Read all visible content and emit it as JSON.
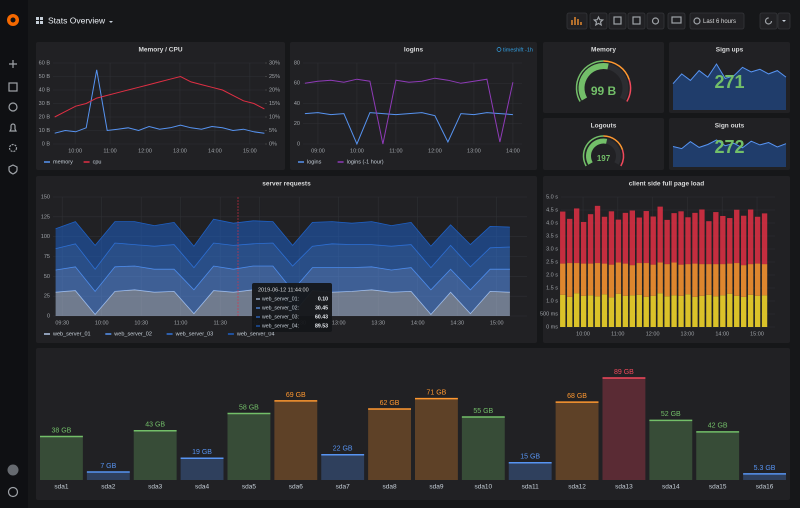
{
  "header": {
    "title": "Stats Overview",
    "time_range": "Last 6 hours"
  },
  "chart_data": [
    {
      "type": "line",
      "title": "Memory / CPU",
      "x": [
        "09:25",
        "09:43",
        "10:01",
        "10:19",
        "10:37",
        "10:55",
        "11:13",
        "11:31",
        "11:49",
        "12:07",
        "12:25",
        "12:43",
        "13:01",
        "13:19",
        "13:37",
        "13:55",
        "14:13",
        "14:31",
        "14:49",
        "15:07",
        "15:25"
      ],
      "series": [
        {
          "name": "memory",
          "color": "#5794f2",
          "values": [
            8,
            10,
            9,
            12,
            55,
            10,
            11,
            12,
            10,
            13,
            11,
            12,
            14,
            12,
            11,
            13,
            12,
            10,
            11,
            9,
            8
          ]
        },
        {
          "name": "cpu",
          "color": "#e02f44",
          "axis": "y2",
          "values": [
            10,
            12,
            14,
            15,
            17,
            18,
            19,
            20,
            21,
            22,
            23,
            24,
            25,
            23,
            22,
            21,
            20,
            18,
            16,
            15,
            13
          ]
        }
      ],
      "xlim": [
        "09:22",
        "15:26"
      ],
      "xticks": [
        "10:00",
        "11:00",
        "12:00",
        "13:00",
        "14:00",
        "15:00"
      ],
      "ylim": [
        0,
        60
      ],
      "yticks": [
        {
          "value": 0,
          "label": "0 B"
        },
        {
          "value": 10,
          "label": "10 B"
        },
        {
          "value": 20,
          "label": "20 B"
        },
        {
          "value": 30,
          "label": "30 B"
        },
        {
          "value": 40,
          "label": "40 B"
        },
        {
          "value": 50,
          "label": "50 B"
        },
        {
          "value": 60,
          "label": "60 B"
        }
      ],
      "y2lim": [
        0,
        30
      ],
      "y2ticks": [
        {
          "value": 0,
          "label": "0%"
        },
        {
          "value": 5,
          "label": "5%"
        },
        {
          "value": 10,
          "label": "10%"
        },
        {
          "value": 15,
          "label": "15%"
        },
        {
          "value": 20,
          "label": "20%"
        },
        {
          "value": 25,
          "label": "25%"
        },
        {
          "value": 30,
          "label": "30%"
        }
      ]
    },
    {
      "type": "line",
      "title": "logins",
      "annotation": "timeshift -1h",
      "x": [
        "08:40",
        "09:00",
        "09:20",
        "09:40",
        "10:00",
        "10:20",
        "10:40",
        "11:00",
        "11:20",
        "11:40",
        "12:00",
        "12:20",
        "12:40",
        "13:00",
        "13:20",
        "13:40",
        "14:00"
      ],
      "series": [
        {
          "name": "logins",
          "color": "#5794f2",
          "values": [
            30,
            31,
            29,
            30,
            0,
            31,
            30,
            29,
            30,
            31,
            28,
            2,
            30,
            29,
            31,
            30,
            29
          ]
        },
        {
          "name": "logins (-1 hour)",
          "color": "#8f3bb8",
          "values": [
            60,
            62,
            63,
            61,
            64,
            62,
            0,
            63,
            61,
            62,
            65,
            63,
            60,
            62,
            64,
            2,
            61
          ]
        }
      ],
      "xlim": [
        "08:37",
        "14:14"
      ],
      "xticks": [
        "09:00",
        "10:00",
        "11:00",
        "12:00",
        "13:00",
        "14:00"
      ],
      "ylim": [
        0,
        80
      ],
      "yticks": [
        0,
        20,
        40,
        60,
        80
      ]
    },
    {
      "type": "gauge",
      "title": "Memory",
      "value": 99,
      "value_label": "99 B"
    },
    {
      "type": "stat",
      "title": "Sign ups",
      "value": 271,
      "sparkline": [
        40,
        55,
        45,
        60,
        50,
        70,
        48,
        52,
        65,
        58,
        62,
        55,
        60,
        50
      ]
    },
    {
      "type": "gauge",
      "title": "Logouts",
      "value": 197
    },
    {
      "type": "stat",
      "title": "Sign outs",
      "value": 272,
      "sparkline": [
        50,
        45,
        62,
        48,
        55,
        66,
        52,
        58,
        47,
        63,
        54,
        60,
        49,
        57
      ]
    },
    {
      "type": "area",
      "title": "server requests",
      "x": [
        "09:25",
        "09:40",
        "09:55",
        "10:10",
        "10:25",
        "10:40",
        "10:55",
        "11:10",
        "11:25",
        "11:40",
        "11:55",
        "12:10",
        "12:25",
        "12:40",
        "12:55",
        "13:10",
        "13:25",
        "13:40",
        "13:55",
        "14:10",
        "14:25",
        "14:40",
        "14:55",
        "15:10"
      ],
      "series": [
        {
          "name": "web_server_01",
          "color": "#b3c7e6",
          "values": [
            30,
            32,
            2,
            31,
            33,
            30,
            31,
            3,
            32,
            30,
            33,
            31,
            2,
            32,
            30,
            31,
            33,
            30,
            31,
            2,
            30,
            3,
            31,
            30
          ]
        },
        {
          "name": "web_server_02",
          "color": "#5794f2",
          "values": [
            28,
            30,
            29,
            31,
            30,
            29,
            28,
            30,
            31,
            29,
            30,
            32,
            30,
            29,
            31,
            30,
            29,
            28,
            30,
            31,
            29,
            30,
            28,
            29
          ]
        },
        {
          "name": "web_server_03",
          "color": "#3274d9",
          "values": [
            27,
            29,
            28,
            30,
            27,
            29,
            31,
            28,
            29,
            30,
            28,
            29,
            31,
            27,
            30,
            29,
            28,
            30,
            29,
            28,
            30,
            29,
            27,
            28
          ]
        },
        {
          "name": "web_server_04",
          "color": "#1f60c4",
          "values": [
            25,
            28,
            30,
            27,
            29,
            26,
            28,
            27,
            30,
            28,
            29,
            27,
            26,
            30,
            28,
            27,
            29,
            26,
            28,
            27,
            26,
            28,
            27,
            25
          ]
        }
      ],
      "xlim": [
        "09:23",
        "15:23"
      ],
      "xticks": [
        "09:30",
        "10:00",
        "10:30",
        "11:00",
        "11:30",
        "12:00",
        "12:30",
        "13:00",
        "13:30",
        "14:00",
        "14:30",
        "15:00"
      ],
      "ylim": [
        0,
        150
      ],
      "yticks": [
        0,
        25,
        50,
        75,
        100,
        125,
        150
      ],
      "tooltip": {
        "title": "2019-06-12 11:44:00",
        "names": [
          "web_server_01:",
          "web_server_02:",
          "web_server_03:",
          "web_server_04:"
        ],
        "values": [
          0.1,
          30.45,
          60.43,
          89.53
        ],
        "value_labels": [
          "0.10",
          "30.45",
          "60.43",
          "89.53"
        ]
      }
    },
    {
      "type": "bar",
      "title": "client side full page load",
      "x": [
        "09:25",
        "09:37",
        "09:49",
        "10:01",
        "10:13",
        "10:25",
        "10:37",
        "10:49",
        "11:01",
        "11:13",
        "11:25",
        "11:37",
        "11:49",
        "12:01",
        "12:13",
        "12:25",
        "12:37",
        "12:49",
        "13:01",
        "13:13",
        "13:25",
        "13:37",
        "13:49",
        "14:01",
        "14:13",
        "14:25",
        "14:37",
        "14:49",
        "15:01",
        "15:13"
      ],
      "series": [
        {
          "color": "#fade2a",
          "values": [
            1240,
            1160,
            1300,
            1200,
            1220,
            1180,
            1260,
            1140,
            1280,
            1200,
            1220,
            1240,
            1160,
            1200,
            1300,
            1180,
            1220,
            1200,
            1260,
            1160,
            1200,
            1240,
            1180,
            1220,
            1280,
            1200,
            1160,
            1240,
            1200,
            1220
          ]
        },
        {
          "color": "#ff9830",
          "values": [
            1200,
            1300,
            1160,
            1240,
            1220,
            1280,
            1180,
            1260,
            1200,
            1240,
            1160,
            1220,
            1300,
            1200,
            1180,
            1240,
            1260,
            1200,
            1160,
            1280,
            1220,
            1180,
            1240,
            1200,
            1160,
            1260,
            1220,
            1180,
            1240,
            1200
          ]
        },
        {
          "color": "#e02f44",
          "values": [
            2000,
            1700,
            2100,
            1600,
            1900,
            2200,
            1800,
            2050,
            1650,
            1950,
            2100,
            1750,
            2000,
            1850,
            2150,
            1700,
            1900,
            2050,
            1800,
            1950,
            2100,
            1650,
            2000,
            1850,
            1750,
            2050,
            1900,
            2100,
            1800,
            1950
          ]
        }
      ],
      "xlim": [
        "09:22",
        "15:31"
      ],
      "xticks": [
        "10:00",
        "11:00",
        "12:00",
        "13:00",
        "14:00",
        "15:00"
      ],
      "ylim": [
        0,
        5000
      ],
      "yticks": [
        {
          "value": 0,
          "label": "0 ms"
        },
        {
          "value": 500,
          "label": "500 ms"
        },
        {
          "value": 1000,
          "label": "1.0 s"
        },
        {
          "value": 1500,
          "label": "1.5 s"
        },
        {
          "value": 2000,
          "label": "2.0 s"
        },
        {
          "value": 2500,
          "label": "2.5 s"
        },
        {
          "value": 3000,
          "label": "3.0 s"
        },
        {
          "value": 3500,
          "label": "3.5 s"
        },
        {
          "value": 4000,
          "label": "4.0 s"
        },
        {
          "value": 4500,
          "label": "4.5 s"
        },
        {
          "value": 5000,
          "label": "5.0 s"
        }
      ]
    },
    {
      "type": "bargauge",
      "categories": [
        "sda1",
        "sda2",
        "sda3",
        "sda4",
        "sda5",
        "sda6",
        "sda7",
        "sda8",
        "sda9",
        "sda10",
        "sda11",
        "sda12",
        "sda13",
        "sda14",
        "sda15",
        "sda16"
      ],
      "values": [
        38,
        7,
        43,
        19,
        58,
        69,
        22,
        62,
        71,
        55,
        15,
        68,
        89,
        52,
        42,
        5.3
      ],
      "value_labels": [
        "38 GB",
        "7 GB",
        "43 GB",
        "19 GB",
        "58 GB",
        "69 GB",
        "22 GB",
        "62 GB",
        "71 GB",
        "55 GB",
        "15 GB",
        "68 GB",
        "89 GB",
        "52 GB",
        "42 GB",
        "5.3 GB"
      ],
      "colors": [
        "#73bf69",
        "#5794f2",
        "#73bf69",
        "#5794f2",
        "#73bf69",
        "#ff9830",
        "#5794f2",
        "#ff9830",
        "#ff9830",
        "#73bf69",
        "#5794f2",
        "#ff9830",
        "#f2495c",
        "#73bf69",
        "#73bf69",
        "#5794f2"
      ]
    }
  ]
}
